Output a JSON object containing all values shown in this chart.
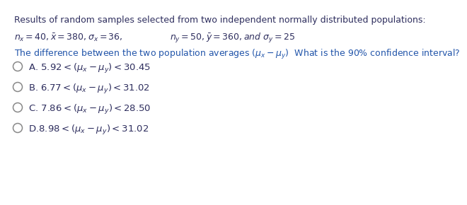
{
  "title": "Results of random samples selected from two independent normally distributed populations:",
  "line1_part1": "$n_x = 40, \\bar{x} = 380, \\sigma_x = 36,$",
  "line1_part2": "$n_y = 50, \\bar{y} = 360, and\\ \\sigma_y = 25$",
  "line2": "The difference between the two population averages $(\\mu_x - \\mu_y)$  What is the 90% confidence interval?",
  "option_A": "A. $5.92 < (\\mu_x - \\mu_y) < 30.45$",
  "option_B": "B. $6.77 < (\\mu_x - \\mu_y) < 31.02$",
  "option_C": "C. $7.86 < (\\mu_x - \\mu_y) < 28.50$",
  "option_D": "D.$8.98 < (\\mu_x - \\mu_y) < 31.02$",
  "title_color": "#2e2e5e",
  "line1_color": "#2e2e5e",
  "line2_color": "#2255aa",
  "option_color": "#2e2e5e",
  "bg_color": "#ffffff",
  "circle_color": "#888888"
}
